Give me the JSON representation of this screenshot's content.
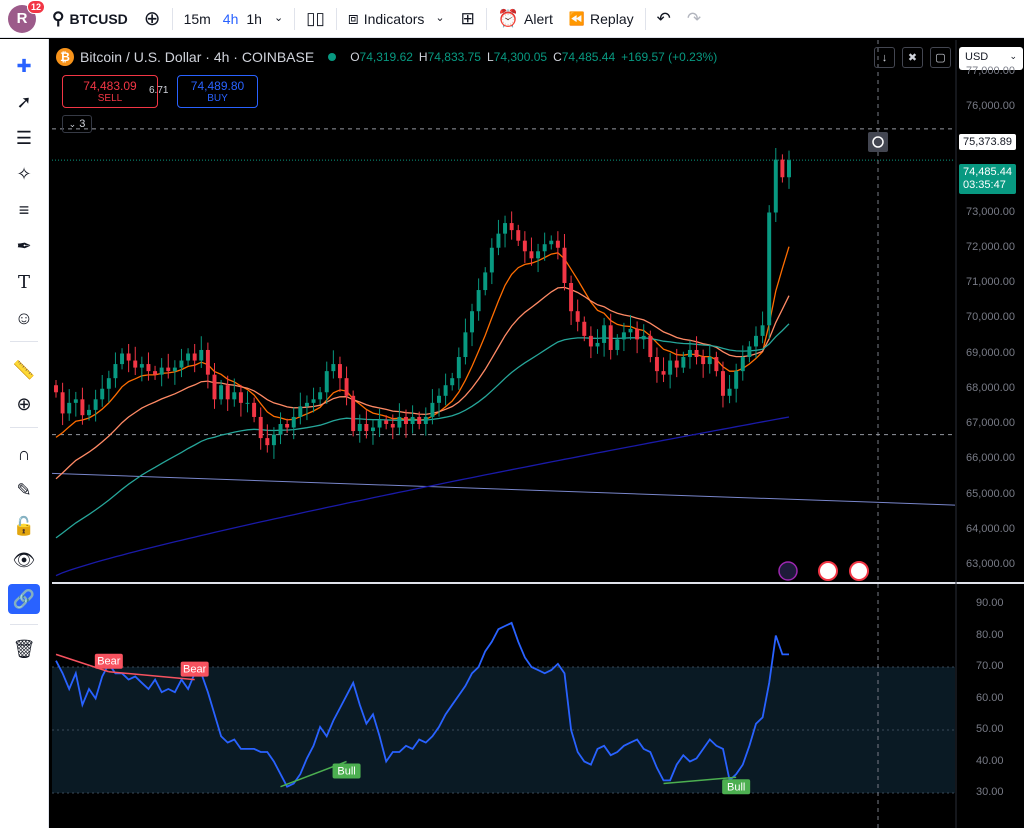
{
  "toolbar": {
    "avatar_letter": "R",
    "notifications": "12",
    "symbol": "BTCUSD",
    "timeframes": [
      "15m",
      "4h",
      "1h"
    ],
    "active_timeframe": "4h",
    "indicators_label": "Indicators",
    "alert_label": "Alert",
    "replay_label": "Replay"
  },
  "legend": {
    "title": "Bitcoin / U.S. Dollar · 4h · COINBASE",
    "open": "74,319.62",
    "high": "74,833.75",
    "low": "74,300.05",
    "close": "74,485.44",
    "change": "+169.57 (+0.23%)",
    "o_label": "O",
    "h_label": "H",
    "l_label": "L",
    "c_label": "C",
    "indicator_count": "3"
  },
  "trade": {
    "sell_price": "74,483.09",
    "sell_label": "SELL",
    "buy_price": "74,489.80",
    "buy_label": "BUY",
    "spread": "6.71"
  },
  "currency": "USD",
  "price_axis": {
    "crosshair_price": "75,373.89",
    "last_price": "74,485.44",
    "countdown": "03:35:47"
  },
  "colors": {
    "up": "#089981",
    "down": "#f23645",
    "ema_fast": "#ff6d00",
    "ema_mid": "#ff8a65",
    "ema_slow": "#26a69a",
    "ema_long": "#1a1aa8",
    "trend": "#7986cb",
    "rsi": "#2962ff"
  },
  "chart_data": [
    {
      "type": "candlestick",
      "title": "Bitcoin / U.S. Dollar · 4h · COINBASE",
      "ylim": [
        62500,
        77600
      ],
      "yticks": [
        "77,000.00",
        "76,000.00",
        "75,000.00",
        "74,000.00",
        "73,000.00",
        "72,000.00",
        "71,000.00",
        "70,000.00",
        "69,000.00",
        "68,000.00",
        "67,000.00",
        "66,000.00",
        "65,000.00",
        "64,000.00",
        "63,000.00"
      ],
      "close": [
        67900,
        67300,
        67600,
        67700,
        67250,
        67400,
        67700,
        68000,
        68300,
        68700,
        69000,
        68800,
        68600,
        68700,
        68500,
        68400,
        68600,
        68500,
        68600,
        68800,
        69000,
        68800,
        69100,
        68400,
        67700,
        68100,
        67700,
        67900,
        67600,
        67600,
        67200,
        66600,
        66400,
        66700,
        67000,
        66900,
        67200,
        67500,
        67600,
        67700,
        67900,
        68500,
        68700,
        68300,
        67800,
        66800,
        67000,
        66800,
        66900,
        67100,
        67000,
        66900,
        67200,
        67000,
        67200,
        67000,
        67200,
        67600,
        67800,
        68100,
        68300,
        68900,
        69600,
        70200,
        70800,
        71300,
        72000,
        72400,
        72700,
        72500,
        72200,
        71900,
        71700,
        71900,
        72100,
        72200,
        72000,
        71000,
        70200,
        69900,
        69500,
        69200,
        69300,
        69800,
        69100,
        69400,
        69600,
        69700,
        69400,
        69500,
        68900,
        68500,
        68400,
        68800,
        68600,
        68900,
        69100,
        68900,
        68700,
        68900,
        68500,
        67800,
        68000,
        68500,
        68900,
        69200,
        69500,
        69800,
        73000,
        74500,
        74000,
        74485
      ],
      "ema_fast_end": 70600,
      "ema_mid_end": 69900,
      "ema_slow_end": 68900,
      "ema_long_end": 67200,
      "trend_line": [
        [
          0,
          65600
        ],
        [
          111,
          64700
        ]
      ],
      "h_lines": [
        75373.89,
        66700
      ]
    },
    {
      "type": "line",
      "title": "RSI",
      "ylim": [
        28,
        95
      ],
      "yticks": [
        "90.00",
        "80.00",
        "70.00",
        "60.00",
        "50.00",
        "40.00",
        "30.00"
      ],
      "band": [
        30,
        70
      ],
      "values": [
        72,
        68,
        63,
        68,
        58,
        63,
        60,
        67,
        71,
        68,
        68,
        66,
        67,
        65,
        63,
        66,
        62,
        63,
        62,
        66,
        63,
        68,
        68,
        62,
        55,
        48,
        46,
        47,
        44,
        44,
        44,
        43,
        43,
        40,
        36,
        32,
        33,
        36,
        41,
        45,
        51,
        48,
        53,
        57,
        61,
        65,
        58,
        52,
        55,
        48,
        40,
        43,
        43,
        45,
        44,
        47,
        46,
        48,
        51,
        55,
        58,
        61,
        64,
        68,
        70,
        75,
        78,
        82,
        83,
        84,
        78,
        73,
        70,
        69,
        68,
        69,
        71,
        68,
        50,
        43,
        40,
        39,
        44,
        45,
        42,
        43,
        45,
        46,
        47,
        44,
        43,
        38,
        34,
        34,
        39,
        42,
        40,
        41,
        44,
        47,
        45,
        44,
        34,
        36,
        39,
        45,
        52,
        54,
        65,
        80,
        74,
        74
      ],
      "divergences": [
        {
          "label": "Bear",
          "from": [
            0,
            74
          ],
          "to": [
            8,
            68.5
          ]
        },
        {
          "label": "Bear",
          "from": [
            8,
            68.5
          ],
          "to": [
            21,
            66
          ]
        },
        {
          "label": "Bull",
          "from": [
            34,
            32
          ],
          "to": [
            44,
            40
          ]
        },
        {
          "label": "Bull",
          "from": [
            92,
            33
          ],
          "to": [
            103,
            35
          ]
        }
      ]
    }
  ]
}
